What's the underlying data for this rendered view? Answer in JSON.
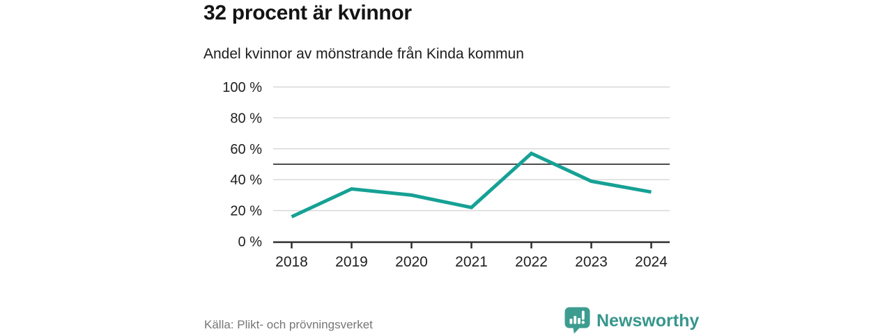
{
  "header": {
    "title": "32 procent är kvinnor",
    "subtitle": "Andel kvinnor av mönstrande från Kinda kommun"
  },
  "chart_data": {
    "type": "line",
    "x": [
      2018,
      2019,
      2020,
      2021,
      2022,
      2023,
      2024
    ],
    "series": [
      {
        "name": "Andel kvinnor av mönstrande",
        "values": [
          16,
          34,
          30,
          22,
          57,
          39,
          32
        ]
      }
    ],
    "title": "32 procent är kvinnor",
    "subtitle": "Andel kvinnor av mönstrande från Kinda kommun",
    "xlabel": "",
    "ylabel": "",
    "ylim": [
      0,
      100
    ],
    "yticks": [
      0,
      20,
      40,
      60,
      80,
      100
    ],
    "ytick_suffix": " %",
    "reference_line": 50,
    "grid": true,
    "legend": false,
    "colors": {
      "line": "#16a195",
      "reference_line": "#4d4d4d",
      "gridline": "#d9d9d9",
      "axis": "#2d2d2d",
      "tick_label": "#1f1f1f"
    }
  },
  "footer": {
    "source": "Källa: Plikt- och prövningsverket",
    "brand": "Newsworthy",
    "brand_color": "#37968c"
  }
}
